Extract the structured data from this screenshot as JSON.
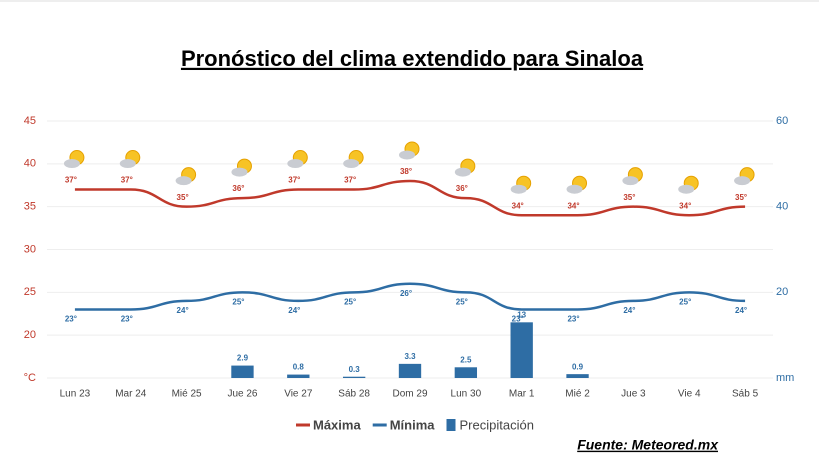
{
  "chart_data": {
    "type": "line-bar",
    "title": "Pronóstico del clima extendido para Sinaloa",
    "source": "Fuente: Meteored.mx",
    "categories": [
      "Lun 23",
      "Mar 24",
      "Mié 25",
      "Jue 26",
      "Vie 27",
      "Sáb 28",
      "Dom 29",
      "Lun 30",
      "Mar 1",
      "Mié 2",
      "Jue 3",
      "Vie 4",
      "Sáb 5"
    ],
    "ylim": [
      15,
      45
    ],
    "yticks": [
      {
        "value": 15,
        "label": "°C"
      },
      20,
      25,
      30,
      35,
      40,
      45
    ],
    "y2lim": [
      0,
      60
    ],
    "y2ticks": [
      {
        "value": 0,
        "label": "mm"
      },
      20,
      40,
      60
    ],
    "grid": true,
    "series": [
      {
        "name": "Máxima",
        "kind": "line",
        "color": "#c0392b",
        "values": [
          37,
          37,
          35,
          36,
          37,
          37,
          38,
          36,
          34,
          34,
          35,
          34,
          35
        ],
        "value_labels": [
          "37°",
          "37°",
          "35°",
          "36°",
          "37°",
          "37°",
          "38°",
          "36°",
          "34°",
          "34°",
          "35°",
          "34°",
          "35°"
        ]
      },
      {
        "name": "Mínima",
        "kind": "line",
        "color": "#2e6da4",
        "values": [
          23,
          23,
          24,
          25,
          24,
          25,
          26,
          25,
          23,
          23,
          24,
          25,
          24
        ],
        "value_labels": [
          "23°",
          "23°",
          "24°",
          "25°",
          "24°",
          "25°",
          "26°",
          "25°",
          "23°",
          "23°",
          "24°",
          "25°",
          "24°"
        ]
      },
      {
        "name": "Precipitación",
        "kind": "bar",
        "axis": "y2",
        "color": "#2e6da4",
        "values": [
          null,
          null,
          null,
          2.9,
          0.8,
          0.3,
          3.3,
          2.5,
          13,
          0.9,
          null,
          null,
          null
        ]
      }
    ]
  }
}
